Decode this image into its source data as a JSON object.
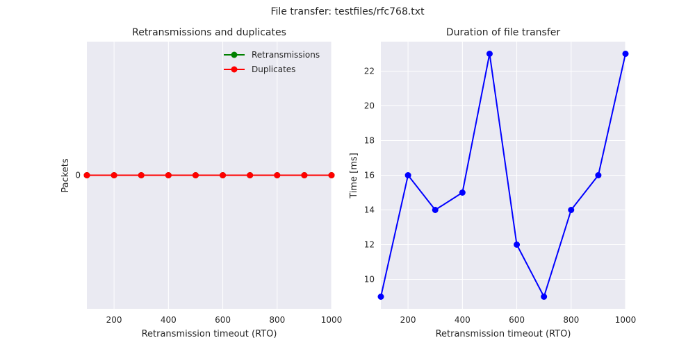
{
  "figure": {
    "suptitle": "File transfer: testfiles/rfc768.txt"
  },
  "chart_data": [
    {
      "type": "line",
      "title": "Retransmissions and duplicates",
      "xlabel": "Retransmission timeout (RTO)",
      "ylabel": "Packets",
      "x": [
        100,
        200,
        300,
        400,
        500,
        600,
        700,
        800,
        900,
        1000
      ],
      "xlim": [
        100,
        1000
      ],
      "ylim": [
        -1,
        1
      ],
      "xticks": [
        200,
        400,
        600,
        800,
        1000
      ],
      "yticks": [
        0
      ],
      "grid": true,
      "legend_position": "upper right",
      "series": [
        {
          "name": "Retransmissions",
          "color": "#008000",
          "values": [
            0,
            0,
            0,
            0,
            0,
            0,
            0,
            0,
            0,
            0
          ]
        },
        {
          "name": "Duplicates",
          "color": "#ff0000",
          "values": [
            0,
            0,
            0,
            0,
            0,
            0,
            0,
            0,
            0,
            0
          ]
        }
      ]
    },
    {
      "type": "line",
      "title": "Duration of file transfer",
      "xlabel": "Retransmission timeout (RTO)",
      "ylabel": "Time [ms]",
      "x": [
        100,
        200,
        300,
        400,
        500,
        600,
        700,
        800,
        900,
        1000
      ],
      "xlim": [
        100,
        1000
      ],
      "ylim": [
        8.3,
        23.7
      ],
      "xticks": [
        200,
        400,
        600,
        800,
        1000
      ],
      "yticks": [
        10,
        12,
        14,
        16,
        18,
        20,
        22
      ],
      "grid": true,
      "series": [
        {
          "color": "#0000ff",
          "values": [
            9,
            16,
            14,
            15,
            23,
            12,
            9,
            14,
            16,
            23
          ]
        }
      ]
    }
  ]
}
